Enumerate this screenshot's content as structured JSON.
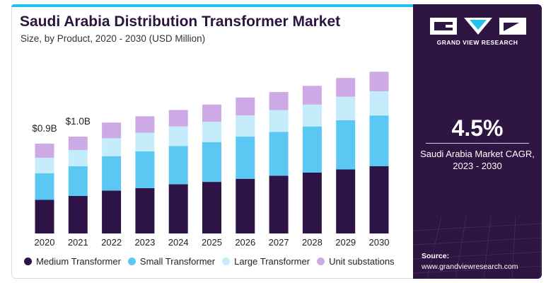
{
  "header": {
    "title": "Saudi Arabia Distribution Transformer Market",
    "subtitle": "Size, by Product, 2020 - 2030 (USD Million)"
  },
  "colors": {
    "medium": "#2e1446",
    "small": "#5bc8f4",
    "large": "#c5ecfb",
    "unit": "#cda9e6",
    "accent_bar": "#1ec3f0",
    "panel_bg": "#2f1541"
  },
  "chart_data": {
    "type": "bar",
    "stacked": true,
    "categories": [
      "2020",
      "2021",
      "2022",
      "2023",
      "2024",
      "2025",
      "2026",
      "2027",
      "2028",
      "2029",
      "2030"
    ],
    "series": [
      {
        "name": "Medium Transformer",
        "values": [
          0.43,
          0.48,
          0.55,
          0.58,
          0.63,
          0.66,
          0.7,
          0.74,
          0.78,
          0.82,
          0.86
        ]
      },
      {
        "name": "Small Transformer",
        "values": [
          0.34,
          0.38,
          0.44,
          0.47,
          0.49,
          0.51,
          0.54,
          0.56,
          0.59,
          0.63,
          0.65
        ]
      },
      {
        "name": "Large Transformer",
        "values": [
          0.2,
          0.21,
          0.23,
          0.24,
          0.25,
          0.26,
          0.27,
          0.28,
          0.28,
          0.3,
          0.31
        ]
      },
      {
        "name": "Unit substations",
        "values": [
          0.18,
          0.17,
          0.2,
          0.21,
          0.21,
          0.22,
          0.23,
          0.23,
          0.24,
          0.24,
          0.25
        ]
      }
    ],
    "bar_labels": [
      "$0.9B",
      "$1.0B"
    ],
    "ylim": [
      0,
      2.3
    ],
    "grid": false,
    "legend": "bottom"
  },
  "panel": {
    "brand": "GRAND VIEW RESEARCH",
    "cagr_value": "4.5%",
    "cagr_label_line1": "Saudi Arabia Market CAGR,",
    "cagr_label_line2": "2023 - 2030",
    "source_title": "Source:",
    "source_url": "www.grandviewresearch.com"
  }
}
